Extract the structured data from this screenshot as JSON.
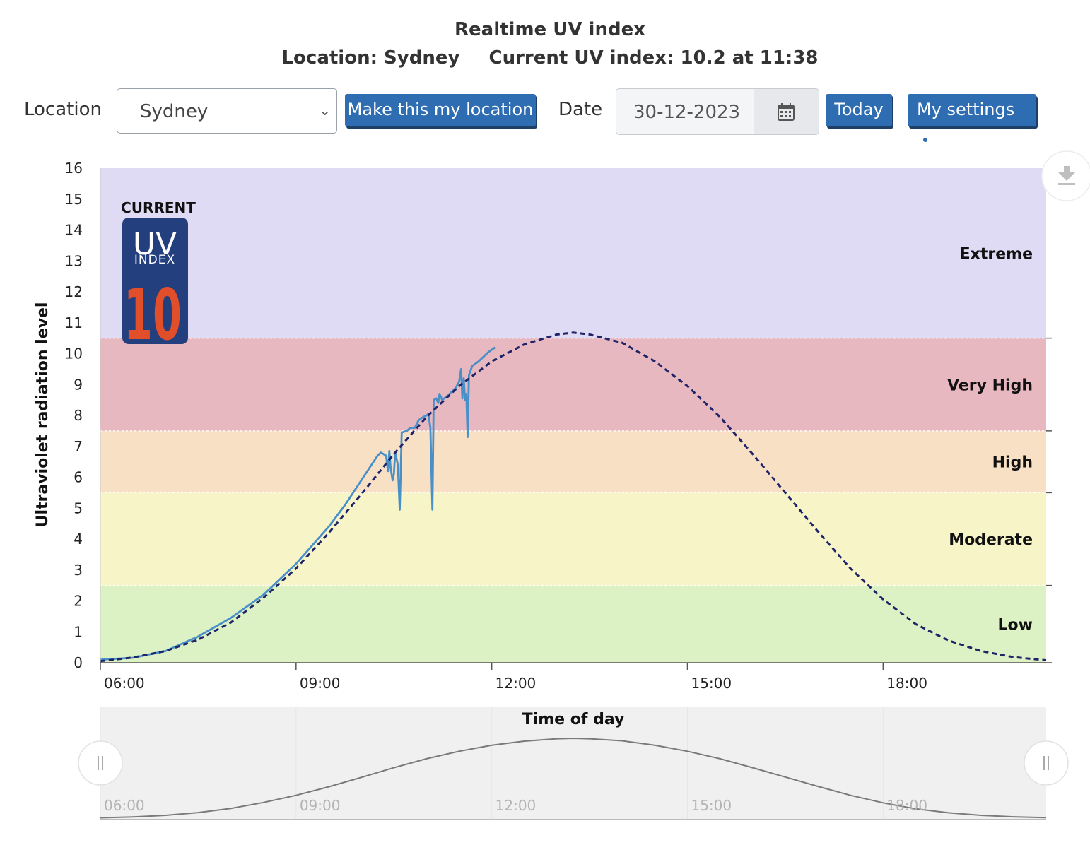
{
  "header": {
    "title": "Realtime UV index",
    "location_text": "Location: Sydney",
    "current_text": "Current UV index: 10.2 at 11:38"
  },
  "form": {
    "location_label": "Location",
    "location_value": "Sydney",
    "make_location_button": "Make this my location",
    "date_label": "Date",
    "date_value": "30-12-2023",
    "today_button": "Today",
    "settings_button": "My settings"
  },
  "badge": {
    "heading": "CURRENT",
    "uv": "UV",
    "index": "INDEX",
    "value": "10",
    "colors": {
      "background": "#243f7e",
      "value": "#e04e2a"
    }
  },
  "icons": [
    "chevron-down-icon",
    "calendar-icon",
    "gear-icon",
    "download-icon",
    "grip-icon"
  ],
  "chart_data": {
    "type": "line",
    "ylabel": "Ultraviolet radiation level",
    "xlabel": "Time of day",
    "xlim": [
      6,
      20.5
    ],
    "ylim": [
      0,
      16
    ],
    "x_tick_values": [
      6,
      9,
      12,
      15,
      18
    ],
    "x_tick_labels": [
      "06:00",
      "09:00",
      "12:00",
      "15:00",
      "18:00"
    ],
    "y_ticks": [
      0,
      1,
      2,
      3,
      4,
      5,
      6,
      7,
      8,
      9,
      10,
      11,
      12,
      13,
      14,
      15,
      16
    ],
    "bands": [
      {
        "label": "Low",
        "from": 0,
        "to": 2.5,
        "color": "#dcf2c4"
      },
      {
        "label": "Moderate",
        "from": 2.5,
        "to": 5.5,
        "color": "#f7f5c8"
      },
      {
        "label": "High",
        "from": 5.5,
        "to": 7.5,
        "color": "#f8e0c5"
      },
      {
        "label": "Very High",
        "from": 7.5,
        "to": 10.5,
        "color": "#e8b8c1"
      },
      {
        "label": "Extreme",
        "from": 10.5,
        "to": 16,
        "color": "#e0dbf5"
      }
    ],
    "series": [
      {
        "style": "solid",
        "color": "#4a90c8",
        "points": [
          [
            6.0,
            0.1
          ],
          [
            6.5,
            0.16
          ],
          [
            7.0,
            0.38
          ],
          [
            7.5,
            0.85
          ],
          [
            8.0,
            1.45
          ],
          [
            8.5,
            2.2
          ],
          [
            9.0,
            3.2
          ],
          [
            9.5,
            4.4
          ],
          [
            9.75,
            5.1
          ],
          [
            10.0,
            5.9
          ],
          [
            10.25,
            6.7
          ],
          [
            10.3,
            6.8
          ],
          [
            10.38,
            6.7
          ],
          [
            10.41,
            6.2
          ],
          [
            10.43,
            6.85
          ],
          [
            10.45,
            6.3
          ],
          [
            10.48,
            5.9
          ],
          [
            10.5,
            6.1
          ],
          [
            10.52,
            6.8
          ],
          [
            10.56,
            6.4
          ],
          [
            10.59,
            4.95
          ],
          [
            10.62,
            7.45
          ],
          [
            10.7,
            7.5
          ],
          [
            10.75,
            7.6
          ],
          [
            10.82,
            7.6
          ],
          [
            10.88,
            7.85
          ],
          [
            10.95,
            7.95
          ],
          [
            11.0,
            8.0
          ],
          [
            11.03,
            8.05
          ],
          [
            11.06,
            7.6
          ],
          [
            11.09,
            4.95
          ],
          [
            11.11,
            8.5
          ],
          [
            11.15,
            8.55
          ],
          [
            11.18,
            8.4
          ],
          [
            11.2,
            8.7
          ],
          [
            11.24,
            8.5
          ],
          [
            11.3,
            8.6
          ],
          [
            11.38,
            8.75
          ],
          [
            11.45,
            8.9
          ],
          [
            11.5,
            9.1
          ],
          [
            11.53,
            9.5
          ],
          [
            11.55,
            8.55
          ],
          [
            11.57,
            9.2
          ],
          [
            11.59,
            8.5
          ],
          [
            11.61,
            8.7
          ],
          [
            11.63,
            7.3
          ],
          [
            11.65,
            9.3
          ],
          [
            11.7,
            9.6
          ],
          [
            11.8,
            9.75
          ],
          [
            11.95,
            10.05
          ],
          [
            12.05,
            10.2
          ]
        ]
      },
      {
        "style": "dashed",
        "color": "#1f2367",
        "points": [
          [
            6.0,
            0.05
          ],
          [
            6.5,
            0.17
          ],
          [
            7.0,
            0.38
          ],
          [
            7.5,
            0.75
          ],
          [
            8.0,
            1.3
          ],
          [
            8.5,
            2.1
          ],
          [
            9.0,
            3.05
          ],
          [
            9.5,
            4.2
          ],
          [
            10.0,
            5.45
          ],
          [
            10.5,
            6.75
          ],
          [
            11.0,
            7.95
          ],
          [
            11.5,
            8.95
          ],
          [
            12.0,
            9.75
          ],
          [
            12.5,
            10.3
          ],
          [
            13.0,
            10.62
          ],
          [
            13.25,
            10.68
          ],
          [
            13.5,
            10.62
          ],
          [
            14.0,
            10.35
          ],
          [
            14.5,
            9.75
          ],
          [
            15.0,
            8.95
          ],
          [
            15.5,
            7.95
          ],
          [
            16.0,
            6.75
          ],
          [
            16.5,
            5.5
          ],
          [
            17.0,
            4.25
          ],
          [
            17.5,
            3.05
          ],
          [
            18.0,
            2.05
          ],
          [
            18.5,
            1.25
          ],
          [
            19.0,
            0.72
          ],
          [
            19.5,
            0.38
          ],
          [
            20.0,
            0.18
          ],
          [
            20.5,
            0.08
          ]
        ]
      }
    ],
    "navigator": {
      "x_tick_values": [
        6,
        9,
        12,
        15,
        18
      ],
      "x_tick_labels": [
        "06:00",
        "09:00",
        "12:00",
        "15:00",
        "18:00"
      ],
      "ylim": [
        0,
        10.68
      ]
    }
  }
}
